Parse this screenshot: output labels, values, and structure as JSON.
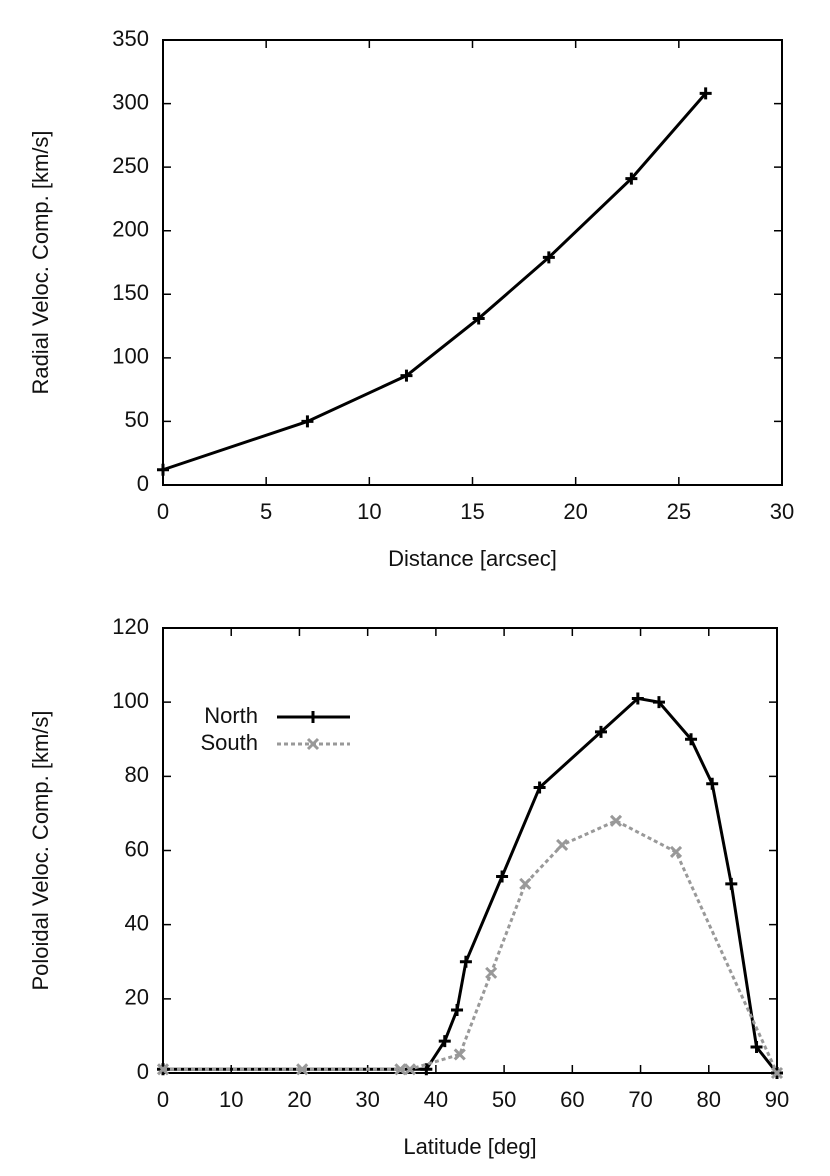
{
  "chart_data": [
    {
      "type": "line",
      "xlabel": "Distance [arcsec]",
      "ylabel": "Radial Veloc. Comp. [km/s]",
      "x": [
        0,
        7,
        11.8,
        15.3,
        18.7,
        22.7,
        26.3
      ],
      "values": [
        12,
        50,
        86,
        131,
        179,
        241,
        308
      ],
      "color": "#000000",
      "marker": "plus",
      "xlim": [
        0,
        30
      ],
      "ylim": [
        0,
        350
      ],
      "xticks": [
        0,
        5,
        10,
        15,
        20,
        25,
        30
      ],
      "yticks": [
        0,
        50,
        100,
        150,
        200,
        250,
        300,
        350
      ]
    },
    {
      "type": "line",
      "xlabel": "Latitude [deg]",
      "ylabel": "Poloidal Veloc. Comp. [km/s]",
      "series": [
        {
          "name": "North",
          "color": "#000000",
          "marker": "plus",
          "line_style": "solid",
          "x": [
            0,
            38.6,
            41.3,
            43.1,
            44.4,
            49.7,
            55.2,
            64.2,
            69.6,
            72.7,
            77.4,
            80.5,
            83.3,
            87,
            90
          ],
          "values": [
            1,
            1,
            8.6,
            17,
            30,
            53,
            77,
            92,
            101,
            100,
            90,
            78,
            51,
            7,
            0
          ]
        },
        {
          "name": "South",
          "color": "#999999",
          "marker": "cross",
          "line_style": "dotted",
          "x": [
            0,
            20.4,
            34.8,
            36.2,
            43.5,
            48.1,
            53.1,
            58.5,
            66.4,
            75.2,
            90
          ],
          "values": [
            1,
            1,
            1,
            1,
            5,
            27,
            51,
            61.5,
            68,
            59.6,
            0
          ]
        }
      ],
      "legend": "top-left",
      "xlim": [
        0,
        90
      ],
      "ylim": [
        0,
        120
      ],
      "xticks": [
        0,
        10,
        20,
        30,
        40,
        50,
        60,
        70,
        80,
        90
      ],
      "yticks": [
        0,
        20,
        40,
        60,
        80,
        100,
        120
      ]
    }
  ]
}
